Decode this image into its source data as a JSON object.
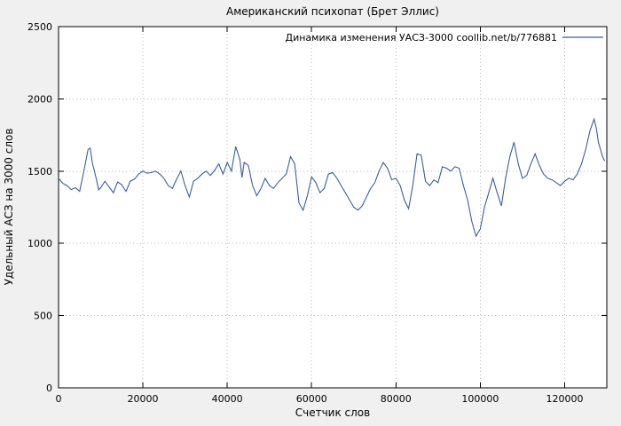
{
  "chart_data": {
    "type": "line",
    "title": "Американский психопат (Брет Эллис)",
    "xlabel": "Счетчик слов",
    "ylabel": "Удельный АСЗ на 3000 слов",
    "legend": "Динамика изменения УАСЗ-3000 coollib.net/b/776881",
    "xlim": [
      0,
      130000
    ],
    "ylim": [
      0,
      2500
    ],
    "xticks": [
      0,
      20000,
      40000,
      60000,
      80000,
      100000,
      120000
    ],
    "yticks": [
      0,
      500,
      1000,
      1500,
      2000,
      2500
    ],
    "grid": true,
    "legend_position": "top-right-inside",
    "line_color": "#3a5f9f",
    "legend_color": "#000080",
    "series": [
      {
        "name": "УАСЗ-3000",
        "points": [
          [
            0,
            1450
          ],
          [
            1000,
            1415
          ],
          [
            2000,
            1400
          ],
          [
            3000,
            1372
          ],
          [
            4000,
            1385
          ],
          [
            5000,
            1360
          ],
          [
            6000,
            1500
          ],
          [
            7000,
            1650
          ],
          [
            7500,
            1660
          ],
          [
            8000,
            1560
          ],
          [
            9000,
            1440
          ],
          [
            9500,
            1370
          ],
          [
            10000,
            1385
          ],
          [
            11000,
            1430
          ],
          [
            12000,
            1390
          ],
          [
            13000,
            1350
          ],
          [
            14000,
            1425
          ],
          [
            15000,
            1405
          ],
          [
            15500,
            1380
          ],
          [
            16000,
            1360
          ],
          [
            17000,
            1430
          ],
          [
            18000,
            1445
          ],
          [
            19000,
            1480
          ],
          [
            20000,
            1500
          ],
          [
            21000,
            1485
          ],
          [
            22000,
            1490
          ],
          [
            23000,
            1500
          ],
          [
            24000,
            1480
          ],
          [
            25000,
            1450
          ],
          [
            26000,
            1400
          ],
          [
            27000,
            1380
          ],
          [
            28000,
            1445
          ],
          [
            29000,
            1500
          ],
          [
            30000,
            1400
          ],
          [
            31000,
            1320
          ],
          [
            32000,
            1430
          ],
          [
            33000,
            1450
          ],
          [
            34000,
            1480
          ],
          [
            35000,
            1500
          ],
          [
            36000,
            1470
          ],
          [
            37000,
            1505
          ],
          [
            38000,
            1550
          ],
          [
            39000,
            1480
          ],
          [
            40000,
            1560
          ],
          [
            41000,
            1500
          ],
          [
            42000,
            1670
          ],
          [
            43000,
            1580
          ],
          [
            43500,
            1455
          ],
          [
            44000,
            1560
          ],
          [
            45000,
            1540
          ],
          [
            46000,
            1400
          ],
          [
            47000,
            1330
          ],
          [
            48000,
            1380
          ],
          [
            49000,
            1450
          ],
          [
            50000,
            1400
          ],
          [
            51000,
            1380
          ],
          [
            52000,
            1420
          ],
          [
            53000,
            1450
          ],
          [
            54000,
            1480
          ],
          [
            55000,
            1600
          ],
          [
            56000,
            1550
          ],
          [
            57000,
            1280
          ],
          [
            58000,
            1230
          ],
          [
            59000,
            1330
          ],
          [
            60000,
            1460
          ],
          [
            61000,
            1420
          ],
          [
            62000,
            1350
          ],
          [
            63000,
            1380
          ],
          [
            64000,
            1480
          ],
          [
            65000,
            1490
          ],
          [
            66000,
            1450
          ],
          [
            67000,
            1400
          ],
          [
            68000,
            1350
          ],
          [
            69000,
            1300
          ],
          [
            70000,
            1250
          ],
          [
            71000,
            1230
          ],
          [
            72000,
            1260
          ],
          [
            73000,
            1320
          ],
          [
            74000,
            1380
          ],
          [
            75000,
            1420
          ],
          [
            76000,
            1500
          ],
          [
            77000,
            1560
          ],
          [
            78000,
            1520
          ],
          [
            79000,
            1440
          ],
          [
            80000,
            1450
          ],
          [
            81000,
            1400
          ],
          [
            82000,
            1300
          ],
          [
            83000,
            1240
          ],
          [
            84000,
            1400
          ],
          [
            85000,
            1620
          ],
          [
            86000,
            1610
          ],
          [
            87000,
            1430
          ],
          [
            88000,
            1400
          ],
          [
            89000,
            1440
          ],
          [
            90000,
            1420
          ],
          [
            91000,
            1530
          ],
          [
            92000,
            1520
          ],
          [
            93000,
            1500
          ],
          [
            94000,
            1530
          ],
          [
            95000,
            1520
          ],
          [
            96000,
            1400
          ],
          [
            97000,
            1300
          ],
          [
            98000,
            1150
          ],
          [
            99000,
            1050
          ],
          [
            100000,
            1100
          ],
          [
            101000,
            1250
          ],
          [
            102000,
            1350
          ],
          [
            103000,
            1450
          ],
          [
            104000,
            1350
          ],
          [
            105000,
            1260
          ],
          [
            106000,
            1450
          ],
          [
            107000,
            1600
          ],
          [
            108000,
            1700
          ],
          [
            109000,
            1550
          ],
          [
            110000,
            1450
          ],
          [
            111000,
            1470
          ],
          [
            112000,
            1550
          ],
          [
            113000,
            1620
          ],
          [
            114000,
            1540
          ],
          [
            115000,
            1480
          ],
          [
            116000,
            1450
          ],
          [
            117000,
            1440
          ],
          [
            118000,
            1420
          ],
          [
            119000,
            1400
          ],
          [
            120000,
            1430
          ],
          [
            121000,
            1450
          ],
          [
            122000,
            1440
          ],
          [
            123000,
            1480
          ],
          [
            124000,
            1550
          ],
          [
            125000,
            1650
          ],
          [
            126000,
            1780
          ],
          [
            127000,
            1860
          ],
          [
            127500,
            1800
          ],
          [
            128000,
            1700
          ],
          [
            129000,
            1600
          ],
          [
            129500,
            1570
          ]
        ]
      }
    ]
  }
}
